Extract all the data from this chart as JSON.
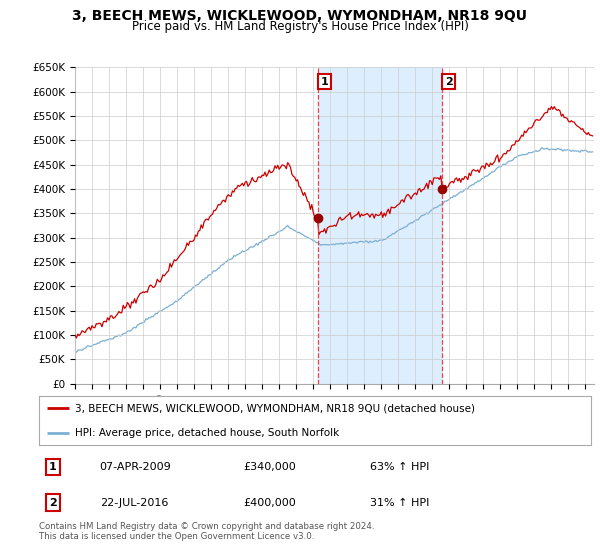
{
  "title": "3, BEECH MEWS, WICKLEWOOD, WYMONDHAM, NR18 9QU",
  "subtitle": "Price paid vs. HM Land Registry's House Price Index (HPI)",
  "ylim": [
    0,
    650000
  ],
  "yticks": [
    0,
    50000,
    100000,
    150000,
    200000,
    250000,
    300000,
    350000,
    400000,
    450000,
    500000,
    550000,
    600000,
    650000
  ],
  "ytick_labels": [
    "£0",
    "£50K",
    "£100K",
    "£150K",
    "£200K",
    "£250K",
    "£300K",
    "£350K",
    "£400K",
    "£450K",
    "£500K",
    "£550K",
    "£600K",
    "£650K"
  ],
  "xlim_start": 1995.0,
  "xlim_end": 2025.5,
  "transaction1_x": 2009.27,
  "transaction1_y": 340000,
  "transaction1_label": "1",
  "transaction2_x": 2016.55,
  "transaction2_y": 400000,
  "transaction2_label": "2",
  "line_color_property": "#cc0000",
  "line_color_hpi": "#7bafd4",
  "shade_color": "#ddeeff",
  "background_color": "#ffffff",
  "grid_color": "#cccccc",
  "legend_label_property": "3, BEECH MEWS, WICKLEWOOD, WYMONDHAM, NR18 9QU (detached house)",
  "legend_label_hpi": "HPI: Average price, detached house, South Norfolk",
  "table_row1_num": "1",
  "table_row1_date": "07-APR-2009",
  "table_row1_price": "£340,000",
  "table_row1_hpi": "63% ↑ HPI",
  "table_row2_num": "2",
  "table_row2_date": "22-JUL-2016",
  "table_row2_price": "£400,000",
  "table_row2_hpi": "31% ↑ HPI",
  "footnote": "Contains HM Land Registry data © Crown copyright and database right 2024.\nThis data is licensed under the Open Government Licence v3.0.",
  "title_fontsize": 10,
  "subtitle_fontsize": 8.5,
  "tick_fontsize": 7.5
}
